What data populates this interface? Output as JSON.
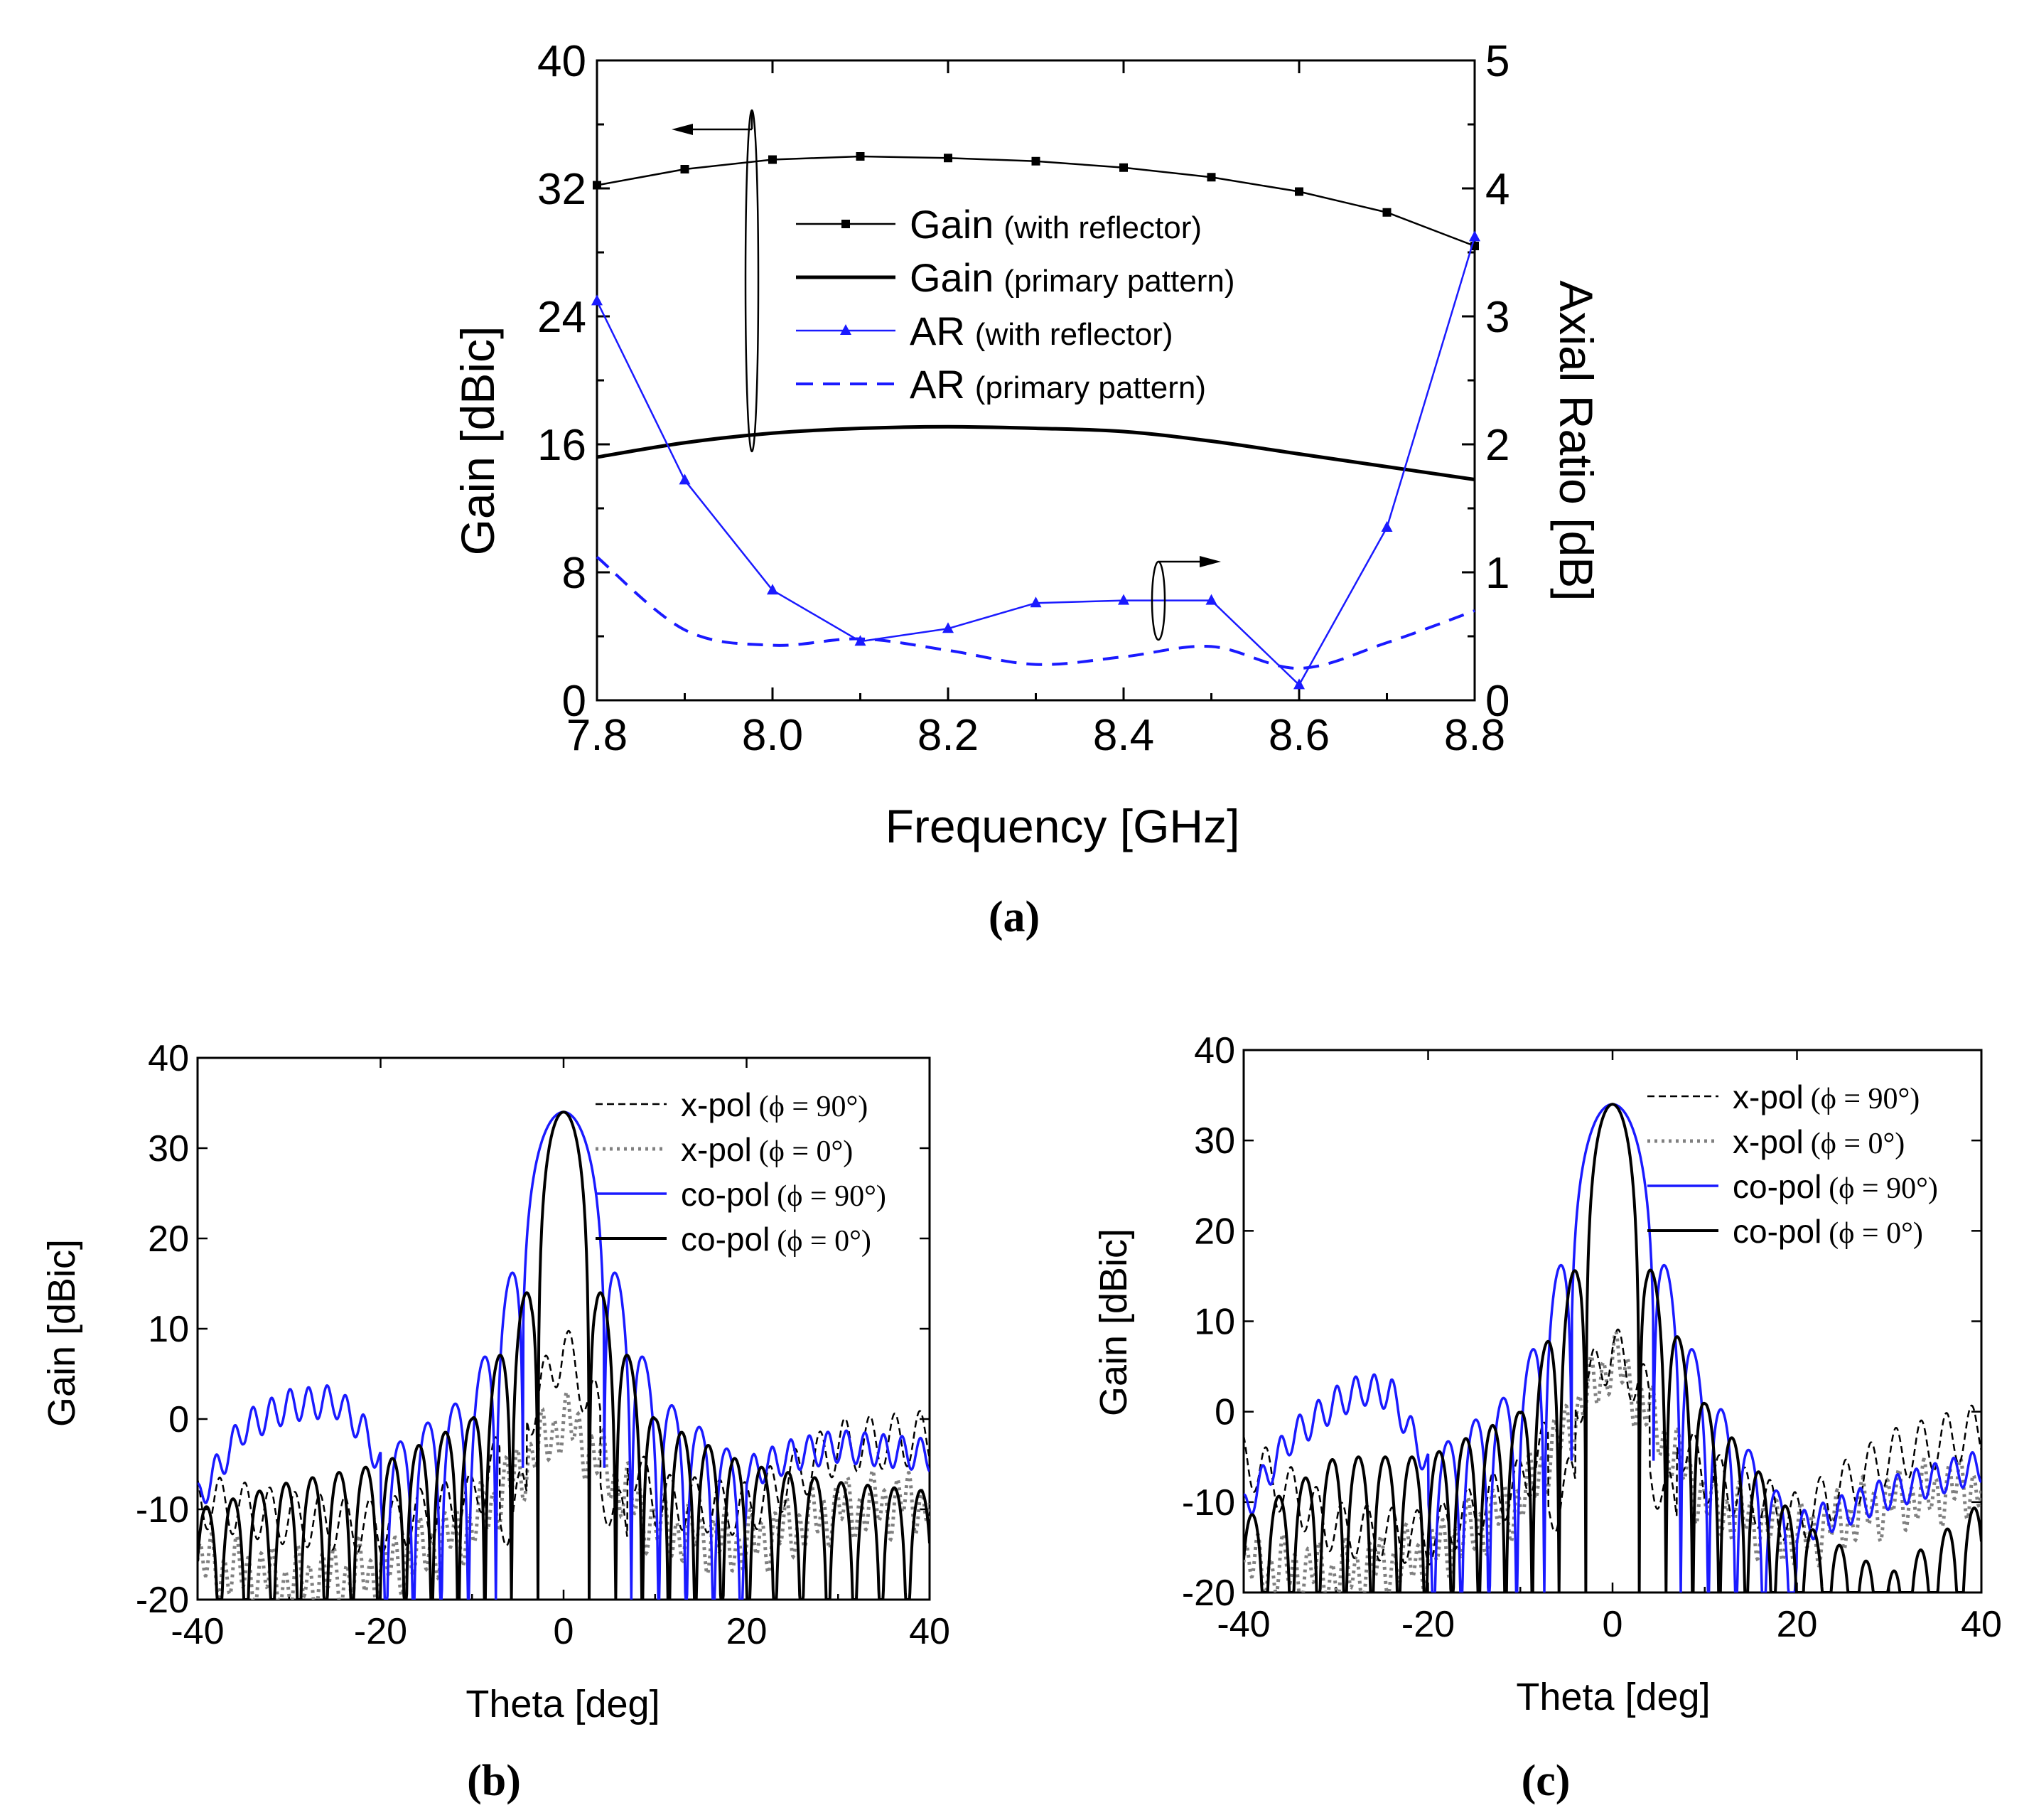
{
  "chart_data": [
    {
      "panel": "a",
      "type": "line",
      "panel_label": "(a)",
      "xlabel": "Frequency [GHz]",
      "ylabel_left": "Gain [dBic]",
      "ylabel_right": "Axial Ratio [dB]",
      "xlim": [
        7.8,
        8.8
      ],
      "ylim_left": [
        0,
        40
      ],
      "ylim_right": [
        0,
        5
      ],
      "xticks": [
        "7.8",
        "8.0",
        "8.2",
        "8.4",
        "8.6",
        "8.8"
      ],
      "yticks_left": [
        "0",
        "8",
        "16",
        "24",
        "32",
        "40"
      ],
      "yticks_right": [
        "0",
        "1",
        "2",
        "3",
        "4",
        "5"
      ],
      "legend_position": "upper-center",
      "series": [
        {
          "name": "Gain",
          "qualifier": "(with reflector)",
          "axis": "left",
          "color": "#000000",
          "style": "thin-line-square-markers",
          "x": [
            7.8,
            7.9,
            8.0,
            8.1,
            8.2,
            8.3,
            8.4,
            8.5,
            8.6,
            8.7,
            8.8
          ],
          "y": [
            32.2,
            33.2,
            33.8,
            34.0,
            33.9,
            33.7,
            33.3,
            32.7,
            31.8,
            30.5,
            28.4
          ]
        },
        {
          "name": "Gain",
          "qualifier": "(primary pattern)",
          "axis": "left",
          "color": "#000000",
          "style": "thick-line",
          "x": [
            7.8,
            7.9,
            8.0,
            8.1,
            8.2,
            8.3,
            8.4,
            8.5,
            8.6,
            8.7,
            8.8
          ],
          "y": [
            15.2,
            16.1,
            16.7,
            17.0,
            17.1,
            17.0,
            16.8,
            16.2,
            15.4,
            14.6,
            13.8
          ]
        },
        {
          "name": "AR",
          "qualifier": "(with reflector)",
          "axis": "right",
          "color": "#1a1aff",
          "style": "thin-line-triangle-markers",
          "x": [
            7.8,
            7.9,
            8.0,
            8.1,
            8.2,
            8.3,
            8.4,
            8.5,
            8.6,
            8.7,
            8.8
          ],
          "y": [
            3.12,
            1.72,
            0.86,
            0.46,
            0.56,
            0.76,
            0.78,
            0.78,
            0.12,
            1.35,
            3.62
          ]
        },
        {
          "name": "AR",
          "qualifier": "(primary pattern)",
          "axis": "right",
          "color": "#1a1aff",
          "style": "dashed-line",
          "x": [
            7.8,
            7.9,
            8.0,
            8.1,
            8.2,
            8.3,
            8.4,
            8.5,
            8.6,
            8.7,
            8.8
          ],
          "y": [
            1.12,
            0.55,
            0.43,
            0.48,
            0.39,
            0.28,
            0.34,
            0.42,
            0.25,
            0.45,
            0.7
          ]
        }
      ]
    },
    {
      "panel": "b",
      "type": "line",
      "panel_label": "(b)",
      "xlabel": "Theta [deg]",
      "ylabel": "Gain [dBic]",
      "xlim": [
        -40,
        40
      ],
      "ylim": [
        -20,
        40
      ],
      "xticks": [
        "-40",
        "-20",
        "0",
        "20",
        "40"
      ],
      "yticks": [
        "-20",
        "-10",
        "0",
        "10",
        "20",
        "30",
        "40"
      ],
      "legend_position": "top-right",
      "series": [
        {
          "name": "x-pol",
          "qualifier": "(ϕ = 90°)",
          "color": "#000000",
          "style": "thin-dashed",
          "peak": 8,
          "nulls": [
            -5.5,
            5.5
          ],
          "x_sample": [
            -40,
            -30,
            -20,
            -10,
            -3,
            0,
            3,
            10,
            20,
            30,
            40
          ],
          "y_sample": [
            -9,
            -11,
            -12,
            -9,
            2,
            8,
            2,
            -9,
            -10,
            -3,
            -2
          ]
        },
        {
          "name": "x-pol",
          "qualifier": "(ϕ = 0°)",
          "color": "#808080",
          "style": "dotted",
          "peak": 0,
          "x_sample": [
            -40,
            -30,
            -20,
            -10,
            0,
            10,
            20,
            30,
            40
          ],
          "y_sample": [
            -16,
            -18,
            -17,
            -12,
            0,
            -12,
            -14,
            -10,
            -9
          ]
        },
        {
          "name": "co-pol",
          "qualifier": "(ϕ = 90°)",
          "color": "#1a1aff",
          "style": "solid",
          "peak": 34,
          "x_sample": [
            -40,
            -35,
            -30,
            -25,
            -22,
            -20,
            -10,
            0,
            10,
            20,
            25,
            30,
            40
          ],
          "y_sample": [
            -8,
            0,
            2.5,
            3,
            0,
            -4,
            3,
            34,
            3,
            -5,
            -3,
            -2,
            -3
          ]
        },
        {
          "name": "co-pol",
          "qualifier": "(ϕ = 0°)",
          "color": "#000000",
          "style": "solid",
          "peak": 34,
          "first_sidelobe": 15.5,
          "beamwidth_nulls": [
            -2.8,
            2.8
          ],
          "x_sample": [
            -40,
            -30,
            -20,
            -10,
            -3.5,
            0,
            3.5,
            10,
            20,
            30,
            40
          ],
          "y_sample": [
            -10,
            -7,
            -5,
            0,
            15.5,
            34,
            15.5,
            0,
            -5,
            -7,
            -8
          ]
        }
      ]
    },
    {
      "panel": "c",
      "type": "line",
      "panel_label": "(c)",
      "xlabel": "Theta [deg]",
      "ylabel": "Gain [dBic]",
      "xlim": [
        -40,
        40
      ],
      "ylim": [
        -20,
        40
      ],
      "xticks": [
        "-40",
        "-20",
        "0",
        "20",
        "40"
      ],
      "yticks": [
        "-20",
        "-10",
        "0",
        "10",
        "20",
        "30",
        "40"
      ],
      "legend_position": "top-right",
      "series": [
        {
          "name": "x-pol",
          "qualifier": "(ϕ = 90°)",
          "color": "#000000",
          "style": "thin-dashed",
          "peak": 7,
          "x_sample": [
            -40,
            -30,
            -20,
            -10,
            0,
            10,
            20,
            30,
            40
          ],
          "y_sample": [
            -5,
            -13,
            -14,
            -8,
            7,
            -7,
            -12,
            -5,
            -2
          ]
        },
        {
          "name": "x-pol",
          "qualifier": "(ϕ = 0°)",
          "color": "#808080",
          "style": "dotted",
          "peak": 6,
          "x_sample": [
            -40,
            -30,
            -20,
            -10,
            0,
            10,
            20,
            30,
            40
          ],
          "y_sample": [
            -17,
            -18,
            -16,
            -10,
            6,
            -10,
            -14,
            -10,
            -8
          ]
        },
        {
          "name": "co-pol",
          "qualifier": "(ϕ = 90°)",
          "color": "#1a1aff",
          "style": "solid",
          "peak": 34,
          "x_sample": [
            -40,
            -35,
            -30,
            -27,
            -24,
            -20,
            -10,
            0,
            10,
            20,
            30,
            40
          ],
          "y_sample": [
            -10,
            -2,
            2,
            3.5,
            3,
            -5,
            3,
            34,
            3,
            -12,
            -8,
            -5
          ]
        },
        {
          "name": "co-pol",
          "qualifier": "(ϕ = 0°)",
          "color": "#000000",
          "style": "solid",
          "peak": 34,
          "first_sidelobe": 17,
          "beamwidth_nulls": [
            -2.9,
            2.9
          ],
          "x_sample": [
            -40,
            -30,
            -20,
            -10,
            -3.7,
            0,
            3.7,
            10,
            20,
            30,
            40
          ],
          "y_sample": [
            -12,
            -5,
            -5,
            0,
            17,
            34,
            17,
            1,
            -12,
            -18,
            -10
          ]
        }
      ]
    }
  ]
}
